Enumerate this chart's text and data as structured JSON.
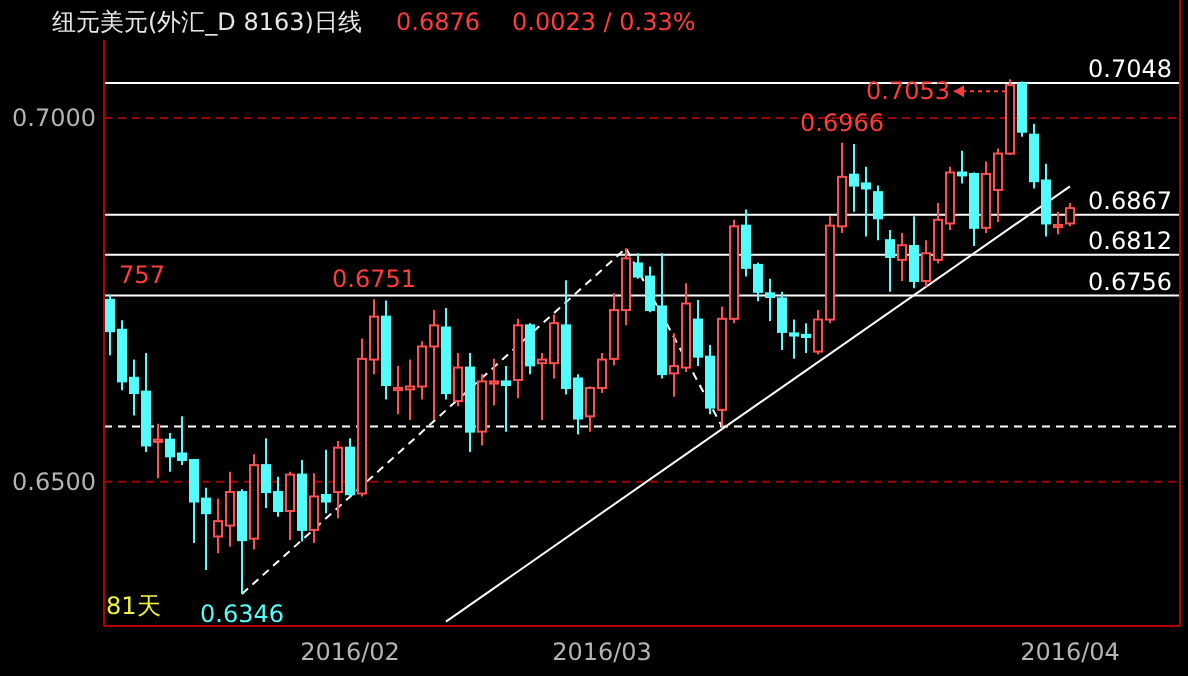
{
  "chart_data": {
    "type": "candlestick",
    "title": "纽元美元(外汇_D 8163)日线",
    "annotations": [
      "0.6876",
      "0.0023 / 0.33%",
      "81天",
      {
        "text": "757",
        "y": 0.6757
      },
      {
        "text": "0.6751",
        "y": 0.6751
      },
      {
        "text": "0.6346",
        "y": 0.6346
      },
      {
        "text": "0.6966",
        "y": 0.6966
      },
      {
        "text": "0.7053",
        "y": 0.7053
      }
    ],
    "categories": [
      null,
      null,
      null,
      null,
      null,
      null,
      null,
      null,
      null,
      null,
      null,
      null,
      null,
      null,
      null,
      null,
      null,
      null,
      null,
      null,
      "2016/02",
      null,
      null,
      null,
      null,
      null,
      null,
      null,
      null,
      null,
      null,
      null,
      null,
      null,
      null,
      null,
      null,
      null,
      null,
      null,
      null,
      "2016/03",
      null,
      null,
      null,
      null,
      null,
      null,
      null,
      null,
      null,
      null,
      null,
      null,
      null,
      null,
      null,
      null,
      null,
      null,
      null,
      null,
      null,
      null,
      null,
      null,
      null,
      null,
      null,
      null,
      null,
      null,
      null,
      null,
      null,
      null,
      null,
      null,
      null,
      null,
      "2016/04"
    ],
    "ylim": [
      0.6302,
      0.7107
    ],
    "yticks": [
      {
        "value": 0.7,
        "label": "0.7000"
      },
      {
        "value": 0.65,
        "label": "0.6500"
      }
    ],
    "grid": "y",
    "ref_lines": [
      {
        "axis": "y",
        "value": 0.7048,
        "label": "0.7048",
        "color": "#ffffff"
      },
      {
        "axis": "y",
        "value": 0.6867,
        "label": "0.6867",
        "color": "#ffffff"
      },
      {
        "axis": "y",
        "value": 0.6812,
        "label": "0.6812",
        "color": "#ffffff"
      },
      {
        "axis": "y",
        "value": 0.6756,
        "label": "0.6756",
        "color": "#ffffff"
      },
      {
        "axis": "y",
        "value": 0.6576,
        "color": "#ffffff",
        "line_style": "dashed"
      }
    ],
    "series": [
      {
        "type": "line",
        "values": [
          null,
          null,
          null,
          null,
          null,
          null,
          null,
          null,
          null,
          null,
          null,
          null,
          null,
          null,
          null,
          null,
          null,
          null,
          null,
          null,
          null,
          null,
          null,
          null,
          null,
          null,
          null,
          null,
          0.6308,
          null,
          null,
          null,
          null,
          null,
          null,
          null,
          null,
          null,
          null,
          null,
          null,
          null,
          null,
          null,
          null,
          null,
          null,
          null,
          null,
          null,
          null,
          null,
          null,
          null,
          null,
          null,
          null,
          null,
          null,
          null,
          null,
          null,
          null,
          null,
          null,
          null,
          null,
          null,
          null,
          null,
          null,
          null,
          null,
          null,
          null,
          null,
          null,
          null,
          null,
          null,
          0.6906
        ],
        "color": "#ffffff",
        "line_style": "solid"
      },
      {
        "type": "line",
        "values": [
          null,
          null,
          null,
          null,
          null,
          null,
          null,
          null,
          null,
          null,
          null,
          0.6346,
          null,
          null,
          null,
          null,
          null,
          null,
          null,
          null,
          null,
          null,
          null,
          null,
          null,
          null,
          null,
          null,
          null,
          null,
          null,
          null,
          null,
          null,
          null,
          null,
          null,
          null,
          null,
          null,
          null,
          null,
          null,
          0.6821,
          null,
          null,
          null,
          null,
          null,
          null,
          null,
          0.6576,
          null,
          null,
          null,
          null,
          null,
          null,
          null,
          null,
          null,
          null,
          null,
          null,
          null,
          null,
          null,
          null,
          null,
          null,
          null,
          null,
          null,
          null,
          null,
          null,
          null,
          null,
          null,
          null,
          null
        ],
        "color": "#ffffff",
        "line_style": "dashed"
      },
      {
        "ohlc": [
          [
            0.675,
            0.6757,
            0.6674,
            0.6707
          ],
          [
            0.6709,
            0.6722,
            0.6626,
            0.6638
          ],
          [
            0.6643,
            0.6668,
            0.6591,
            0.6622
          ],
          [
            0.6624,
            0.6677,
            0.6541,
            0.655
          ],
          [
            0.6555,
            0.658,
            0.6505,
            0.6558
          ],
          [
            0.6558,
            0.6567,
            0.6514,
            0.6535
          ],
          [
            0.6539,
            0.659,
            0.6523,
            0.653
          ],
          [
            0.653,
            0.653,
            0.6416,
            0.6473
          ],
          [
            0.6477,
            0.6492,
            0.6379,
            0.6457
          ],
          [
            0.6425,
            0.6477,
            0.6402,
            0.6446
          ],
          [
            0.644,
            0.6514,
            0.6411,
            0.6486
          ],
          [
            0.6486,
            0.649,
            0.6346,
            0.642
          ],
          [
            0.6422,
            0.6538,
            0.6407,
            0.6523
          ],
          [
            0.6523,
            0.656,
            0.6464,
            0.6486
          ],
          [
            0.6486,
            0.6507,
            0.6452,
            0.646
          ],
          [
            0.646,
            0.6514,
            0.642,
            0.651
          ],
          [
            0.651,
            0.653,
            0.6418,
            0.6434
          ],
          [
            0.6434,
            0.6512,
            0.6416,
            0.648
          ],
          [
            0.6482,
            0.6544,
            0.6457,
            0.6473
          ],
          [
            0.6486,
            0.6556,
            0.645,
            0.6547
          ],
          [
            0.6547,
            0.656,
            0.648,
            0.6483
          ],
          [
            0.6484,
            0.6697,
            0.648,
            0.6669
          ],
          [
            0.6668,
            0.6751,
            0.6648,
            0.6727
          ],
          [
            0.6727,
            0.6749,
            0.6613,
            0.6633
          ],
          [
            0.6626,
            0.6659,
            0.6593,
            0.6629
          ],
          [
            0.6627,
            0.6668,
            0.6585,
            0.6631
          ],
          [
            0.6631,
            0.6693,
            0.6613,
            0.6686
          ],
          [
            0.6686,
            0.6736,
            0.6585,
            0.6715
          ],
          [
            0.6712,
            0.6739,
            0.6613,
            0.6622
          ],
          [
            0.6611,
            0.6677,
            0.6604,
            0.6657
          ],
          [
            0.6657,
            0.6677,
            0.6541,
            0.6569
          ],
          [
            0.6569,
            0.6648,
            0.655,
            0.6638
          ],
          [
            0.6635,
            0.6669,
            0.6605,
            0.6638
          ],
          [
            0.6638,
            0.6659,
            0.6569,
            0.6633
          ],
          [
            0.664,
            0.6724,
            0.6615,
            0.6715
          ],
          [
            0.6715,
            0.6718,
            0.6648,
            0.666
          ],
          [
            0.6663,
            0.6677,
            0.6585,
            0.6668
          ],
          [
            0.6663,
            0.673,
            0.6642,
            0.6718
          ],
          [
            0.6715,
            0.6777,
            0.662,
            0.6629
          ],
          [
            0.6642,
            0.6648,
            0.6565,
            0.6587
          ],
          [
            0.659,
            0.6631,
            0.6569,
            0.6629
          ],
          [
            0.6629,
            0.6677,
            0.6622,
            0.6668
          ],
          [
            0.6669,
            0.6759,
            0.666,
            0.6736
          ],
          [
            0.6736,
            0.6821,
            0.6715,
            0.6807
          ],
          [
            0.68,
            0.6814,
            0.6779,
            0.6782
          ],
          [
            0.6782,
            0.6796,
            0.6733,
            0.6736
          ],
          [
            0.6741,
            0.6814,
            0.6642,
            0.6648
          ],
          [
            0.6649,
            0.6704,
            0.6617,
            0.6659
          ],
          [
            0.6657,
            0.6773,
            0.6651,
            0.6745
          ],
          [
            0.6723,
            0.675,
            0.6659,
            0.6672
          ],
          [
            0.6672,
            0.6688,
            0.6593,
            0.6602
          ],
          [
            0.6599,
            0.6741,
            0.6576,
            0.6724
          ],
          [
            0.6724,
            0.686,
            0.6718,
            0.6851
          ],
          [
            0.6852,
            0.6874,
            0.6782,
            0.6794
          ],
          [
            0.6798,
            0.6801,
            0.6748,
            0.6761
          ],
          [
            0.6759,
            0.6779,
            0.6721,
            0.6754
          ],
          [
            0.6752,
            0.6761,
            0.6681,
            0.6706
          ],
          [
            0.6704,
            0.6723,
            0.6669,
            0.6701
          ],
          [
            0.6702,
            0.6718,
            0.6677,
            0.6699
          ],
          [
            0.6679,
            0.6736,
            0.6675,
            0.6723
          ],
          [
            0.6723,
            0.6865,
            0.6718,
            0.6852
          ],
          [
            0.6851,
            0.6966,
            0.6842,
            0.6919
          ],
          [
            0.6922,
            0.6964,
            0.6871,
            0.6907
          ],
          [
            0.691,
            0.6933,
            0.6837,
            0.6903
          ],
          [
            0.6898,
            0.6907,
            0.6832,
            0.6862
          ],
          [
            0.6832,
            0.6846,
            0.6761,
            0.6809
          ],
          [
            0.6805,
            0.6842,
            0.6776,
            0.6825
          ],
          [
            0.6824,
            0.6865,
            0.6766,
            0.6776
          ],
          [
            0.6776,
            0.6832,
            0.6768,
            0.6814
          ],
          [
            0.6805,
            0.6883,
            0.68,
            0.686
          ],
          [
            0.6855,
            0.6933,
            0.6846,
            0.6925
          ],
          [
            0.6925,
            0.6955,
            0.691,
            0.6921
          ],
          [
            0.6923,
            0.6925,
            0.6824,
            0.6849
          ],
          [
            0.6849,
            0.694,
            0.6842,
            0.6923
          ],
          [
            0.6901,
            0.6958,
            0.6857,
            0.6951
          ],
          [
            0.6951,
            0.7053,
            0.6949,
            0.7045
          ],
          [
            0.7047,
            0.705,
            0.6974,
            0.6981
          ],
          [
            0.6977,
            0.6992,
            0.6903,
            0.6913
          ],
          [
            0.6914,
            0.6937,
            0.6837,
            0.6855
          ],
          [
            0.685,
            0.6871,
            0.684,
            0.6853
          ],
          [
            0.6855,
            0.6883,
            0.6851,
            0.6876
          ]
        ],
        "colors": [
          "#54fcfc",
          "#54fcfc",
          "#54fcfc",
          "#54fcfc",
          "#ff5050",
          "#54fcfc",
          "#54fcfc",
          "#54fcfc",
          "#54fcfc",
          "#ff5050",
          "#ff5050",
          "#54fcfc",
          "#ff5050",
          "#54fcfc",
          "#54fcfc",
          "#ff5050",
          "#54fcfc",
          "#ff5050",
          "#54fcfc",
          "#ff5050",
          "#54fcfc",
          "#ff5050",
          "#ff5050",
          "#54fcfc",
          "#ff5050",
          "#ff5050",
          "#ff5050",
          "#ff5050",
          "#54fcfc",
          "#ff5050",
          "#54fcfc",
          "#ff5050",
          "#ff5050",
          "#54fcfc",
          "#ff5050",
          "#54fcfc",
          "#ff5050",
          "#ff5050",
          "#54fcfc",
          "#54fcfc",
          "#ff5050",
          "#ff5050",
          "#ff5050",
          "#ff5050",
          "#54fcfc",
          "#54fcfc",
          "#54fcfc",
          "#ff5050",
          "#ff5050",
          "#54fcfc",
          "#54fcfc",
          "#ff5050",
          "#ff5050",
          "#54fcfc",
          "#54fcfc",
          "#54fcfc",
          "#54fcfc",
          "#54fcfc",
          "#54fcfc",
          "#ff5050",
          "#ff5050",
          "#ff5050",
          "#54fcfc",
          "#54fcfc",
          "#54fcfc",
          "#54fcfc",
          "#ff5050",
          "#54fcfc",
          "#ff5050",
          "#ff5050",
          "#ff5050",
          "#54fcfc",
          "#54fcfc",
          "#ff5050",
          "#ff5050",
          "#ff5050",
          "#54fcfc",
          "#54fcfc",
          "#54fcfc",
          "#ff5050",
          "#ff5050"
        ]
      }
    ]
  }
}
